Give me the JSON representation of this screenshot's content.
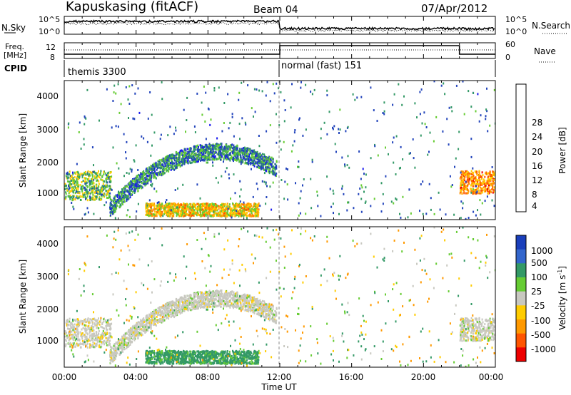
{
  "header": {
    "station": "Kapuskasing (fitACF)",
    "beam": "Beam 04",
    "date": "07/Apr/2012"
  },
  "panels": {
    "nsky_label": "N.Sky",
    "nsearch_label": "N.Search",
    "nsky_ticks": [
      "10^5",
      "10^0"
    ],
    "nsearch_ticks": [
      "10^5",
      "10^0"
    ],
    "freq_label_1": "Freq.",
    "freq_label_2": "[MHz]",
    "freq_ticks": [
      "12",
      "8"
    ],
    "nave_label": "Nave",
    "nave_ticks": [
      "60",
      "0"
    ],
    "cpid_label": "CPID",
    "cpid_left": "themis 3300",
    "cpid_right": "normal (fast) 151"
  },
  "power_panel": {
    "ylabel": "Slant Range [km]",
    "yticks": [
      "4000",
      "3000",
      "2000",
      "1000"
    ],
    "colorbar_label": "Power [dB]",
    "colorbar_ticks": [
      "28",
      "24",
      "20",
      "16",
      "12",
      "8",
      "4"
    ],
    "colors": [
      "#ee0000",
      "#ff5500",
      "#ff9900",
      "#ffcc00",
      "#66cc33",
      "#339966",
      "#2244bb",
      "#1a1aee"
    ]
  },
  "velocity_panel": {
    "ylabel": "Slant Range [km]",
    "yticks": [
      "4000",
      "3000",
      "2000",
      "1000"
    ],
    "colorbar_label": "Velocity [m s",
    "colorbar_sup": "-1",
    "colorbar_label_end": "]",
    "colorbar_ticks": [
      "1000",
      "500",
      "100",
      "25",
      "-25",
      "-100",
      "-500",
      "-1000"
    ],
    "colors": [
      "#1a3fbb",
      "#3366cc",
      "#339966",
      "#66cc33",
      "#c8c8c0",
      "#ffcc00",
      "#ff9900",
      "#ff5500",
      "#ee0000"
    ]
  },
  "xaxis": {
    "ticks": [
      "00:00",
      "04:00",
      "08:00",
      "12:00",
      "16:00",
      "20:00",
      "00:00"
    ],
    "label": "Time UT"
  },
  "chart_data": {
    "type": "heatmap",
    "title": "Kapuskasing (fitACF)  Beam 04  07/Apr/2012",
    "xlabel": "Time UT",
    "ylabel": "Slant Range [km]",
    "x_range_hours": [
      0,
      24
    ],
    "ylim_km": [
      200,
      4500
    ],
    "power_scale_db": [
      0,
      30
    ],
    "velocity_scale_ms": [
      -1000,
      1000
    ],
    "mode_change_hour": 12,
    "modes": [
      {
        "cpid": "themis 3300",
        "start_hour": 0,
        "end_hour": 12
      },
      {
        "cpid": "normal (fast) 151",
        "start_hour": 12,
        "end_hour": 24
      }
    ],
    "scatter_regions": [
      {
        "name": "near-range echoes",
        "t_start": 0,
        "t_end": 2.6,
        "range_km": [
          800,
          1700
        ],
        "power_db": 12,
        "velocity_ms": 0
      },
      {
        "name": "arc band",
        "t_start": 2.5,
        "t_end": 11.8,
        "range_km": [
          1200,
          2600
        ],
        "power_db": 8,
        "velocity_ms": 0
      },
      {
        "name": "low-range patches",
        "t_start": 4.5,
        "t_end": 10.8,
        "range_km": [
          300,
          700
        ],
        "power_db": 18,
        "velocity_ms": 120
      },
      {
        "name": "evening band",
        "t_start": 22,
        "t_end": 24,
        "range_km": [
          1000,
          1700
        ],
        "power_db": 22,
        "velocity_ms": 0
      }
    ]
  }
}
